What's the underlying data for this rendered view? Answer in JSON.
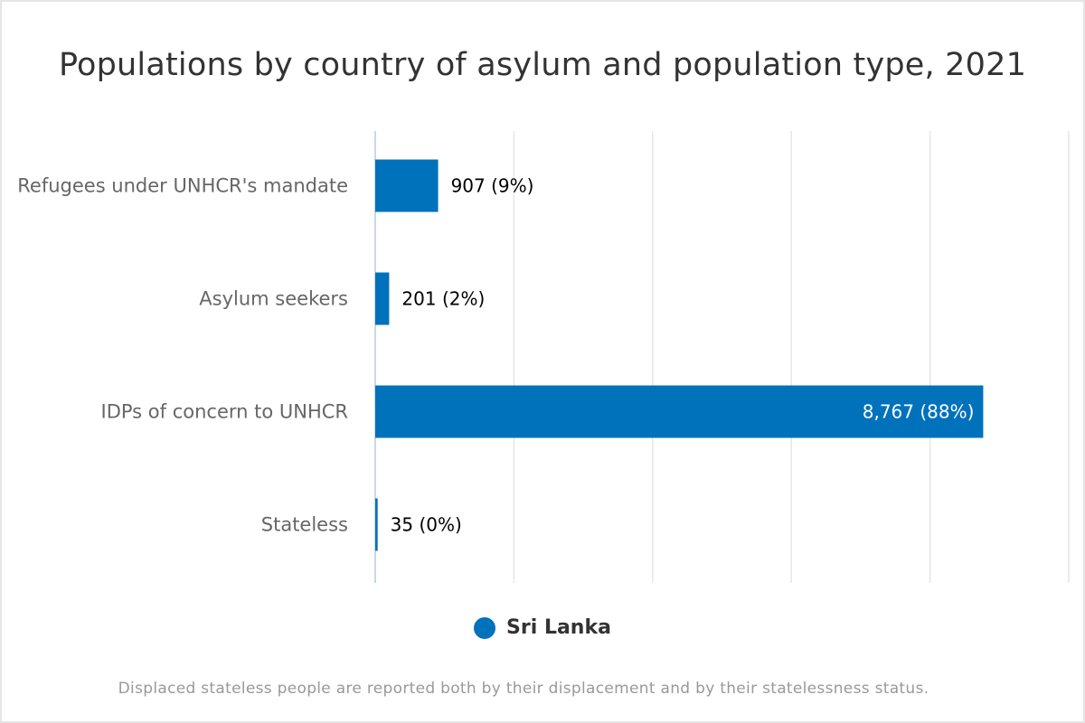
{
  "chart_data": {
    "type": "bar",
    "orientation": "horizontal",
    "title": "Populations by country of asylum and population type, 2021",
    "categories": [
      "Refugees under UNHCR's mandate",
      "Asylum seekers",
      "IDPs of concern to UNHCR",
      "Stateless"
    ],
    "series": [
      {
        "name": "Sri Lanka",
        "color": "#0072bc",
        "values": [
          907,
          201,
          8767,
          35
        ],
        "data_labels": [
          "907 (9%)",
          "201 (2%)",
          "8,767 (88%)",
          "35 (0%)"
        ]
      }
    ],
    "xlim": [
      0,
      10000
    ],
    "grid": true,
    "legend_position": "bottom-center",
    "footnote": "Displaced stateless people are reported both by their displacement and by their statelessness status."
  }
}
